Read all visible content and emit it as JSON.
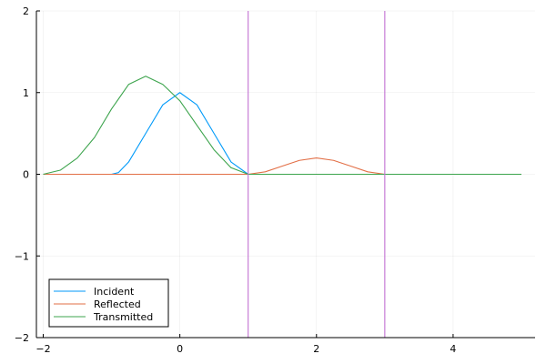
{
  "chart_data": {
    "type": "line",
    "title": "",
    "xlabel": "",
    "ylabel": "",
    "xlim": [
      -2.1,
      5.2
    ],
    "ylim": [
      -2,
      2
    ],
    "xticks": [
      -2,
      0,
      2,
      4
    ],
    "yticks": [
      -2,
      -1,
      0,
      1,
      2
    ],
    "grid": true,
    "legend_position": "bottom-left",
    "series": [
      {
        "name": "Incident",
        "color": "#009af9",
        "x": [
          -2,
          -1,
          -0.9,
          -0.75,
          -0.5,
          -0.25,
          0,
          0.25,
          0.5,
          0.75,
          1,
          1.5,
          2,
          3,
          4,
          5
        ],
        "y": [
          0,
          0,
          0.02,
          0.15,
          0.5,
          0.85,
          1.0,
          0.85,
          0.5,
          0.15,
          0,
          0,
          0,
          0,
          0,
          0
        ]
      },
      {
        "name": "Reflected",
        "color": "#e26f46",
        "x": [
          -2,
          0,
          1,
          1.25,
          1.5,
          1.75,
          2,
          2.25,
          2.5,
          2.75,
          3,
          4,
          5
        ],
        "y": [
          0,
          0,
          0,
          0.03,
          0.1,
          0.17,
          0.2,
          0.17,
          0.1,
          0.03,
          0,
          0,
          0
        ]
      },
      {
        "name": "Transmitted",
        "color": "#3da44d",
        "x": [
          -2,
          -1.75,
          -1.5,
          -1.25,
          -1,
          -0.75,
          -0.5,
          -0.25,
          0,
          0.25,
          0.5,
          0.75,
          1,
          2,
          3,
          4,
          5
        ],
        "y": [
          0,
          0.05,
          0.2,
          0.45,
          0.8,
          1.1,
          1.2,
          1.1,
          0.9,
          0.6,
          0.3,
          0.08,
          0,
          0,
          0,
          0,
          0
        ]
      },
      {
        "name": "",
        "color": "#c271d2",
        "x": [
          1,
          1
        ],
        "y": [
          -2,
          2
        ]
      },
      {
        "name": "",
        "color": "#c271d2",
        "x": [
          3,
          3
        ],
        "y": [
          -2,
          2
        ]
      }
    ]
  }
}
